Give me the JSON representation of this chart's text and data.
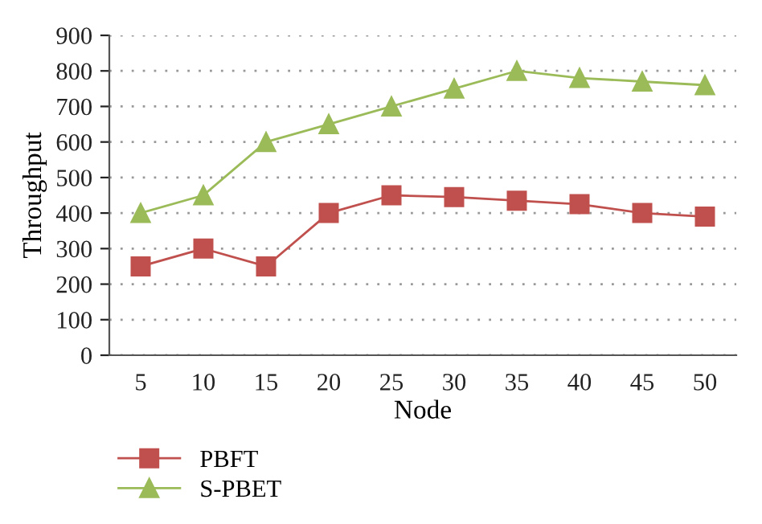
{
  "chart_data": {
    "type": "line",
    "xlabel": "Node",
    "ylabel": "Throughput",
    "categories": [
      "5",
      "10",
      "15",
      "20",
      "25",
      "30",
      "35",
      "40",
      "45",
      "50"
    ],
    "series": [
      {
        "name": "PBFT",
        "color": "#c0504d",
        "values": [
          250,
          300,
          250,
          400,
          450,
          445,
          435,
          425,
          400,
          390
        ],
        "marker": "square"
      },
      {
        "name": "S-PBET",
        "color": "#9bbb59",
        "values": [
          400,
          450,
          600,
          650,
          700,
          750,
          800,
          780,
          770,
          760
        ],
        "marker": "triangle"
      }
    ],
    "ylim": [
      0,
      900
    ],
    "yticks": [
      0,
      100,
      200,
      300,
      400,
      500,
      600,
      700,
      800,
      900
    ],
    "grid": "y",
    "legend": "bottom left",
    "line_style": "solid"
  }
}
